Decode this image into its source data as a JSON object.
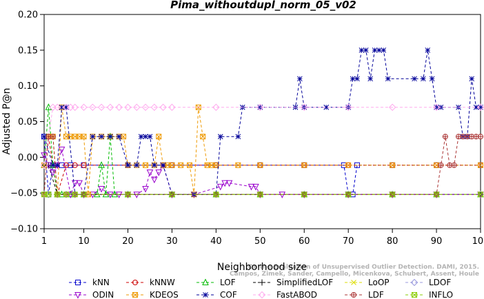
{
  "chart_data": {
    "type": "line",
    "title": "Pima_withoutdupl_norm_05_v02",
    "xlabel": "Neighborhood size",
    "ylabel": "Adjusted P@n",
    "xlim": [
      1,
      100
    ],
    "ylim": [
      -0.1,
      0.2
    ],
    "xticks": [
      1,
      10,
      20,
      30,
      40,
      50,
      60,
      70,
      80,
      90,
      100
    ],
    "yticks": [
      -0.1,
      -0.05,
      0.0,
      0.05,
      0.1,
      0.15,
      0.2
    ],
    "ytick_labels": [
      "−0.10",
      "−0.05",
      "0.00",
      "0.05",
      "0.10",
      "0.15",
      "0.20"
    ],
    "grid": false,
    "legend_position": "bottom",
    "watermark": [
      "Campos, Zimek, Sander, Campello, Micenkova, Schubert, Assent, Houle",
      "On the Evaluation of Unsupervised Outlier Detection. DAMI, 2015."
    ],
    "series": [
      {
        "name": "kNN",
        "color": "#0000cc",
        "marker": "square",
        "x": [
          1,
          2,
          3,
          5,
          7,
          10,
          20,
          30,
          40,
          50,
          60,
          69,
          70,
          71,
          72,
          80,
          90,
          100
        ],
        "y": [
          0.029,
          -0.052,
          -0.011,
          -0.011,
          -0.011,
          -0.011,
          -0.011,
          -0.011,
          -0.011,
          -0.011,
          -0.011,
          -0.011,
          -0.052,
          -0.052,
          -0.011,
          -0.011,
          -0.011,
          -0.011
        ]
      },
      {
        "name": "kNNW",
        "color": "#cc0000",
        "marker": "circle",
        "x": [
          1,
          2,
          4,
          6,
          8,
          10,
          20,
          30,
          40,
          50,
          60,
          70,
          80,
          90,
          100
        ],
        "y": [
          -0.011,
          0.029,
          -0.052,
          -0.011,
          -0.011,
          -0.011,
          -0.011,
          -0.011,
          -0.011,
          -0.011,
          -0.011,
          -0.011,
          -0.011,
          -0.011,
          -0.011
        ]
      },
      {
        "name": "LOF",
        "color": "#00bb00",
        "marker": "triangle",
        "x": [
          1,
          2,
          3,
          4,
          5,
          7,
          10,
          13,
          14,
          15,
          16,
          17,
          20,
          30,
          40,
          50,
          60,
          70,
          80,
          90,
          100
        ],
        "y": [
          -0.011,
          0.07,
          -0.011,
          -0.052,
          -0.052,
          -0.052,
          -0.052,
          -0.052,
          -0.011,
          -0.052,
          0.029,
          -0.052,
          -0.052,
          -0.052,
          -0.052,
          -0.052,
          -0.052,
          -0.052,
          -0.052,
          -0.052,
          -0.052
        ]
      },
      {
        "name": "SimplifiedLOF",
        "color": "#000000",
        "marker": "plus",
        "x": [
          1,
          2,
          4,
          6,
          8,
          10,
          20,
          30,
          40,
          50,
          60,
          70,
          80,
          90,
          100
        ],
        "y": [
          -0.011,
          -0.011,
          -0.052,
          -0.052,
          -0.052,
          -0.052,
          -0.052,
          -0.052,
          -0.052,
          -0.052,
          -0.052,
          -0.052,
          -0.052,
          -0.052,
          -0.052
        ]
      },
      {
        "name": "LoOP",
        "color": "#dddd00",
        "marker": "x",
        "x": [
          1,
          2,
          4,
          6,
          8,
          10,
          20,
          30,
          40,
          50,
          60,
          70,
          80,
          90,
          100
        ],
        "y": [
          -0.052,
          -0.052,
          -0.052,
          -0.052,
          -0.052,
          -0.052,
          -0.052,
          -0.052,
          -0.052,
          -0.052,
          -0.052,
          -0.052,
          -0.052,
          -0.052,
          -0.052
        ]
      },
      {
        "name": "LDOF",
        "color": "#9999dd",
        "marker": "diamond",
        "x": [
          1,
          2,
          4,
          6,
          8,
          10,
          20,
          30,
          40,
          50,
          60,
          70,
          80,
          90,
          100
        ],
        "y": [
          -0.052,
          -0.052,
          -0.052,
          -0.052,
          -0.052,
          -0.052,
          -0.052,
          -0.052,
          -0.052,
          -0.052,
          -0.052,
          -0.052,
          -0.052,
          -0.052,
          -0.052
        ]
      },
      {
        "name": "ODIN",
        "color": "#9900cc",
        "marker": "triangle-down",
        "x": [
          1,
          2,
          3,
          4,
          5,
          7,
          8,
          9,
          10,
          12,
          14,
          16,
          18,
          20,
          22,
          24,
          25,
          26,
          27,
          28,
          30,
          35,
          41,
          42,
          43,
          48,
          49,
          50,
          55,
          60,
          70,
          80,
          90,
          100
        ],
        "y": [
          0.003,
          -0.011,
          -0.021,
          -0.011,
          0.011,
          -0.052,
          -0.036,
          -0.036,
          -0.052,
          -0.052,
          -0.044,
          -0.052,
          -0.052,
          -0.052,
          -0.052,
          -0.044,
          -0.021,
          -0.031,
          -0.021,
          -0.011,
          -0.052,
          -0.052,
          -0.041,
          -0.036,
          -0.036,
          -0.041,
          -0.041,
          -0.052,
          -0.052,
          -0.052,
          -0.052,
          -0.052,
          -0.052,
          -0.052
        ]
      },
      {
        "name": "KDEOS",
        "color": "#ee9900",
        "marker": "square-x",
        "x": [
          1,
          2,
          3,
          4,
          5,
          6,
          7,
          8,
          9,
          10,
          11,
          12,
          14,
          16,
          18,
          19,
          20,
          22,
          24,
          26,
          27,
          28,
          29,
          30,
          32,
          34,
          35,
          36,
          37,
          38,
          39,
          40,
          45,
          50,
          60,
          70,
          80,
          90,
          100
        ],
        "y": [
          -0.011,
          0.029,
          0.029,
          -0.052,
          0.07,
          0.029,
          0.029,
          0.029,
          0.029,
          0.029,
          -0.052,
          0.029,
          0.029,
          0.029,
          0.029,
          0.029,
          -0.011,
          -0.011,
          -0.011,
          -0.011,
          0.029,
          -0.011,
          -0.011,
          -0.011,
          -0.011,
          -0.011,
          -0.052,
          0.07,
          0.029,
          -0.011,
          -0.011,
          -0.011,
          -0.011,
          -0.011,
          -0.011,
          -0.011,
          -0.011,
          -0.011,
          -0.011
        ]
      },
      {
        "name": "COF",
        "color": "#000099",
        "marker": "star",
        "x": [
          1,
          3,
          4,
          5,
          6,
          8,
          10,
          12,
          14,
          16,
          18,
          20,
          22,
          23,
          24,
          25,
          26,
          28,
          30,
          35,
          40,
          41,
          45,
          46,
          50,
          58,
          59,
          60,
          65,
          70,
          71,
          72,
          73,
          74,
          75,
          76,
          77,
          78,
          79,
          85,
          87,
          88,
          89,
          90,
          91,
          95,
          96,
          97,
          98,
          99,
          100
        ],
        "y": [
          0.029,
          -0.011,
          -0.011,
          0.07,
          0.07,
          -0.052,
          -0.052,
          0.029,
          0.029,
          0.029,
          0.029,
          -0.011,
          -0.011,
          0.029,
          0.029,
          0.029,
          -0.011,
          -0.011,
          -0.052,
          -0.052,
          -0.052,
          0.029,
          0.029,
          0.07,
          0.07,
          0.07,
          0.11,
          0.07,
          0.07,
          0.07,
          0.11,
          0.11,
          0.15,
          0.15,
          0.11,
          0.15,
          0.15,
          0.15,
          0.11,
          0.11,
          0.11,
          0.15,
          0.11,
          0.07,
          0.07,
          0.07,
          0.029,
          0.029,
          0.11,
          0.07,
          0.07
        ]
      },
      {
        "name": "FastABOD",
        "color": "#ffaaee",
        "marker": "diamond",
        "x": [
          1,
          3,
          4,
          6,
          7,
          8,
          10,
          12,
          14,
          16,
          18,
          20,
          22,
          24,
          26,
          28,
          30,
          40,
          50,
          60,
          70,
          80,
          90,
          100
        ],
        "y": [
          -0.011,
          0.07,
          0.07,
          0.07,
          0.07,
          0.07,
          0.07,
          0.07,
          0.07,
          0.07,
          0.07,
          0.07,
          0.07,
          0.07,
          0.07,
          0.07,
          0.07,
          0.07,
          0.07,
          0.07,
          0.07,
          0.07,
          0.07,
          0.07
        ]
      },
      {
        "name": "LDF",
        "color": "#aa3333",
        "marker": "circle-plus",
        "x": [
          1,
          2,
          3,
          4,
          6,
          8,
          10,
          20,
          30,
          40,
          50,
          60,
          70,
          80,
          90,
          91,
          92,
          93,
          94,
          95,
          96,
          97,
          98,
          99,
          100
        ],
        "y": [
          -0.052,
          0.029,
          0.029,
          -0.052,
          -0.052,
          -0.052,
          -0.052,
          -0.052,
          -0.052,
          -0.052,
          -0.052,
          -0.052,
          -0.052,
          -0.052,
          -0.052,
          -0.011,
          0.029,
          -0.011,
          -0.011,
          0.029,
          0.029,
          0.029,
          0.029,
          0.029,
          0.029
        ]
      },
      {
        "name": "INFLO",
        "color": "#88cc00",
        "marker": "square-x",
        "x": [
          1,
          2,
          4,
          6,
          8,
          10,
          20,
          30,
          40,
          50,
          60,
          70,
          80,
          90,
          100
        ],
        "y": [
          -0.052,
          -0.052,
          -0.052,
          -0.052,
          -0.052,
          -0.052,
          -0.052,
          -0.052,
          -0.052,
          -0.052,
          -0.052,
          -0.052,
          -0.052,
          -0.052,
          -0.052
        ]
      }
    ]
  }
}
